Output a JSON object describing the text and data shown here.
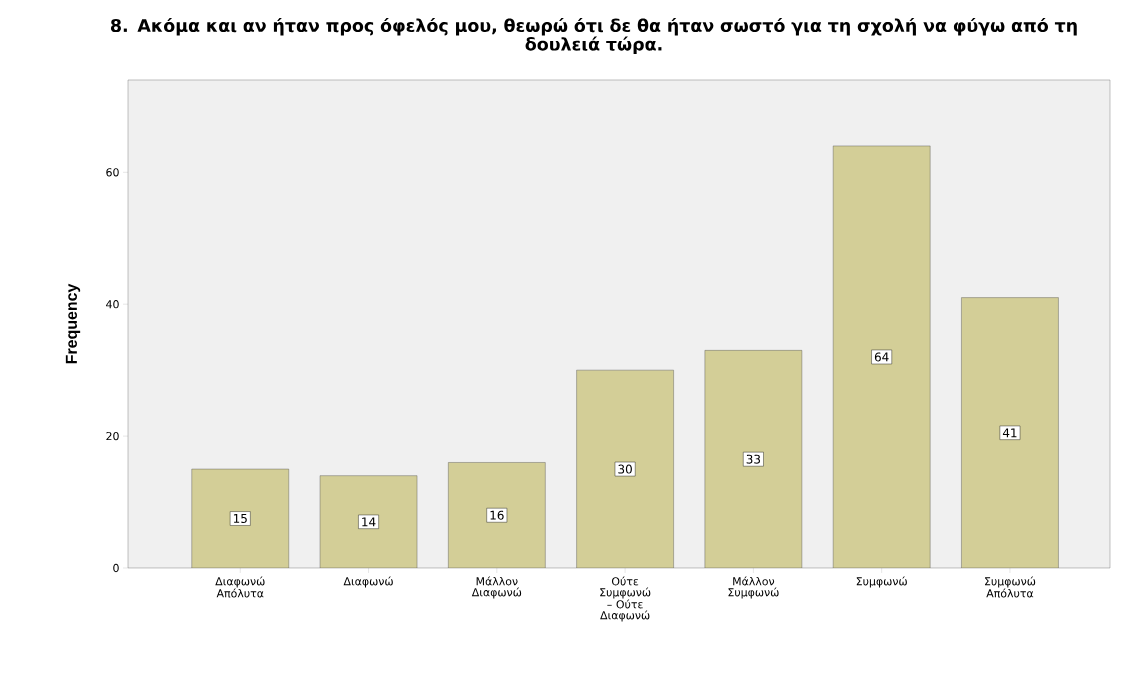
{
  "chart_data": {
    "type": "bar",
    "title": "8. Ακόμα και αν ήταν προς όφελός μου, θεωρώ ότι δε θα ήταν σωστό για τη σχολή να φύγω από τη δουλειά τώρα.",
    "ylabel": "Frequency",
    "categories": [
      "Διαφωνώ Απόλυτα",
      "Διαφωνώ",
      "Μάλλον Διαφωνώ",
      "Ούτε Συμφωνώ – Ούτε Διαφωνώ",
      "Μάλλον Συμφωνώ",
      "Συμφωνώ",
      "Συμφωνώ Απόλυτα"
    ],
    "values": [
      15,
      14,
      16,
      30,
      33,
      64,
      41
    ],
    "color": "#d3ce97",
    "ylim": [
      0,
      74
    ],
    "yticks": [
      0,
      20,
      40,
      60
    ],
    "data_labels": true
  }
}
